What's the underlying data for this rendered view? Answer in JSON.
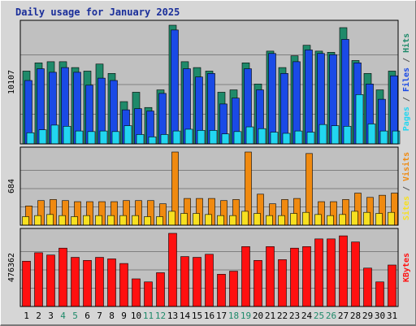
{
  "chart_data": {
    "type": "bar",
    "title": "Daily usage for January 2025",
    "categories": [
      "1",
      "2",
      "3",
      "4",
      "5",
      "6",
      "7",
      "8",
      "9",
      "10",
      "11",
      "12",
      "13",
      "14",
      "15",
      "16",
      "17",
      "18",
      "19",
      "20",
      "21",
      "22",
      "23",
      "24",
      "25",
      "26",
      "27",
      "28",
      "29",
      "30",
      "31"
    ],
    "weekend_days": [
      "4",
      "5",
      "11",
      "12",
      "18",
      "19",
      "25",
      "26"
    ],
    "panels": [
      {
        "id": "hits",
        "max_label": "10107",
        "ymax": 10107,
        "right_label": [
          "Pages",
          "Files",
          "Hits"
        ],
        "series": [
          {
            "name": "Hits",
            "color": "#1f8a6a",
            "values": [
              6200,
              6900,
              7000,
              7000,
              6500,
              6200,
              6800,
              6000,
              3600,
              4400,
              3100,
              4600,
              10107,
              7000,
              6500,
              6200,
              4400,
              4600,
              6900,
              5100,
              7900,
              6500,
              7500,
              8400,
              7900,
              7800,
              9900,
              7100,
              6000,
              4600,
              6200
            ]
          },
          {
            "name": "Files",
            "color": "#1a4ae6",
            "values": [
              5400,
              6400,
              6100,
              6500,
              6100,
              5000,
              5600,
              5400,
              2900,
              3000,
              2800,
              4300,
              9700,
              6400,
              5700,
              6000,
              3400,
              3900,
              6400,
              4600,
              7700,
              6000,
              7000,
              8000,
              7700,
              7600,
              8900,
              6900,
              5100,
              3800,
              5800
            ]
          },
          {
            "name": "Pages",
            "color": "#22d6f0",
            "values": [
              950,
              1200,
              1600,
              1500,
              1100,
              1050,
              1100,
              1050,
              1550,
              800,
              600,
              800,
              1100,
              1250,
              1150,
              1150,
              850,
              1050,
              1450,
              1300,
              1000,
              900,
              1100,
              1000,
              1650,
              1550,
              1500,
              4200,
              1700,
              1100,
              1100
            ]
          }
        ]
      },
      {
        "id": "visits",
        "max_label": "684",
        "ymax": 684,
        "right_label": [
          "Sites",
          "Visits"
        ],
        "series": [
          {
            "name": "Visits",
            "color": "#f08a10",
            "values": [
              180,
              230,
              240,
              230,
              220,
              220,
              220,
              220,
              230,
              230,
              230,
              200,
              684,
              250,
              250,
              250,
              230,
              240,
              684,
              290,
              200,
              240,
              250,
              670,
              220,
              220,
              240,
              300,
              260,
              280,
              300
            ]
          },
          {
            "name": "Sites",
            "color": "#f7e020",
            "values": [
              80,
              90,
              100,
              90,
              80,
              90,
              90,
              90,
              90,
              90,
              80,
              80,
              130,
              110,
              110,
              100,
              90,
              90,
              130,
              110,
              90,
              90,
              110,
              120,
              100,
              90,
              100,
              130,
              120,
              110,
              120
            ]
          }
        ]
      },
      {
        "id": "kbytes",
        "max_label": "476362",
        "ymax": 476362,
        "right_label": [
          "KBytes"
        ],
        "series": [
          {
            "name": "KBytes",
            "color": "#ff1010",
            "values": [
              295000,
              350000,
              335000,
              380000,
              320000,
              300000,
              320000,
              310000,
              280000,
              180000,
              160000,
              220000,
              476362,
              325000,
              320000,
              340000,
              210000,
              230000,
              390000,
              300000,
              390000,
              305000,
              380000,
              390000,
              440000,
              440000,
              460000,
              420000,
              250000,
              160000,
              270000
            ]
          }
        ]
      }
    ]
  }
}
